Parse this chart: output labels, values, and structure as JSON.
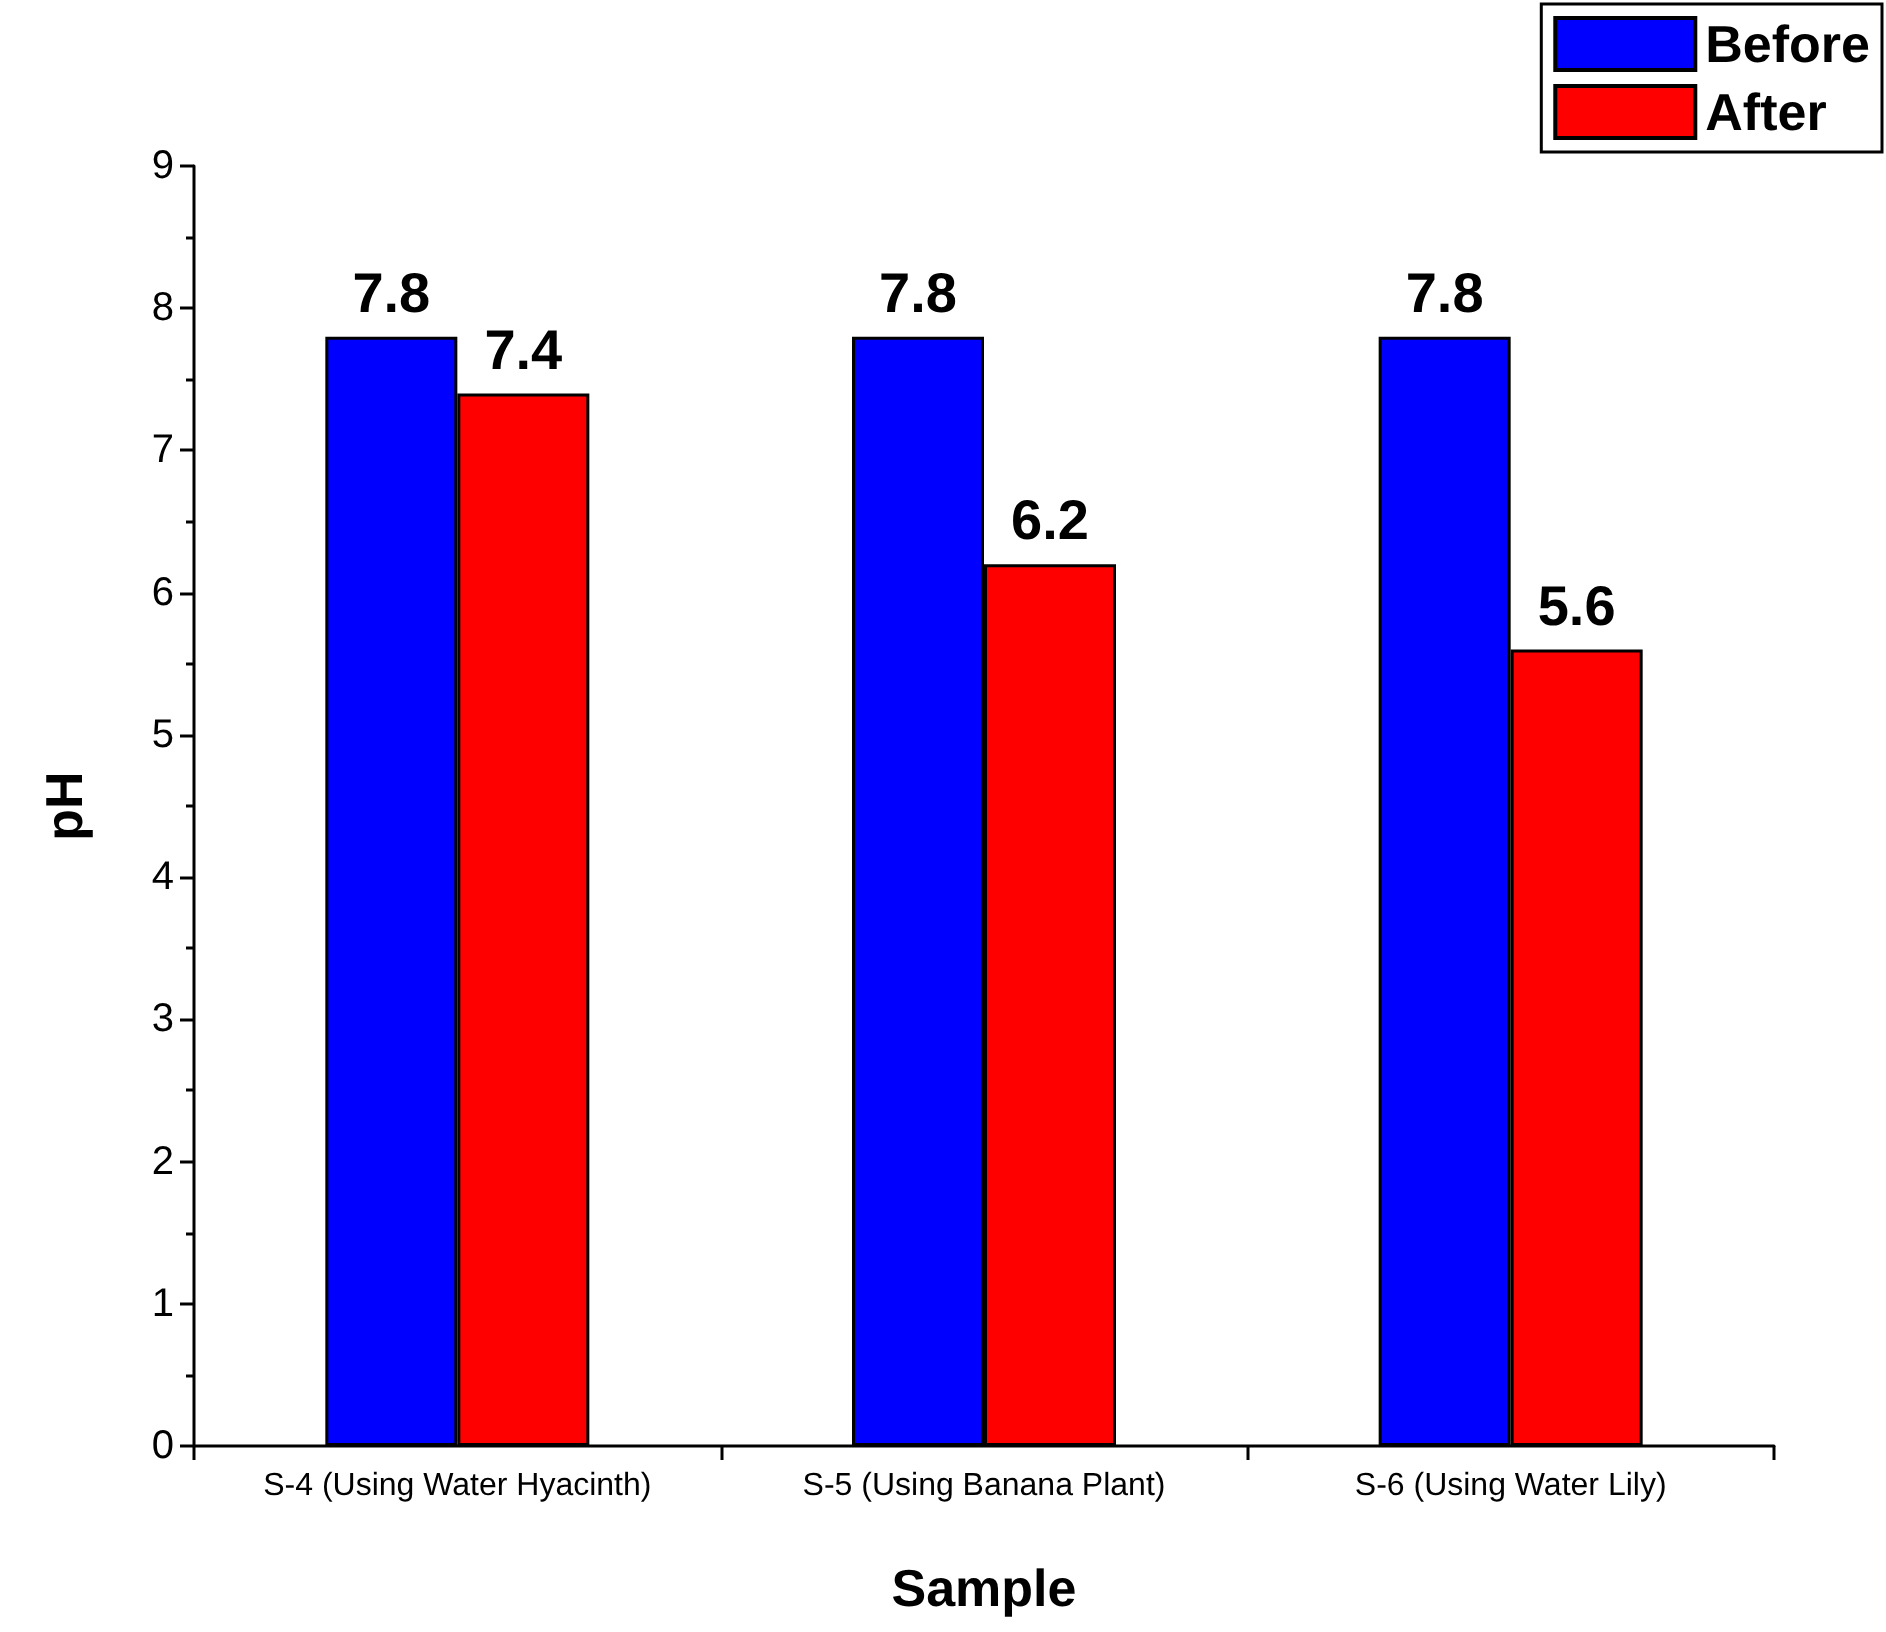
{
  "chart_data": {
    "type": "bar",
    "xlabel": "Sample",
    "ylabel": "pH",
    "categories": [
      "S-4 (Using Water Hyacinth)",
      "S-5 (Using Banana Plant)",
      "S-6 (Using Water Lily)"
    ],
    "series": [
      {
        "name": "Before",
        "color": "#0000ff",
        "values": [
          7.8,
          7.8,
          7.8
        ]
      },
      {
        "name": "After",
        "color": "#ff0000",
        "values": [
          7.4,
          6.2,
          5.6
        ]
      }
    ],
    "ylim": [
      0,
      9
    ],
    "yticks": [
      0,
      1,
      2,
      3,
      4,
      5,
      6,
      7,
      8,
      9
    ],
    "grid": false,
    "legend": "top right",
    "data_labels": true
  }
}
